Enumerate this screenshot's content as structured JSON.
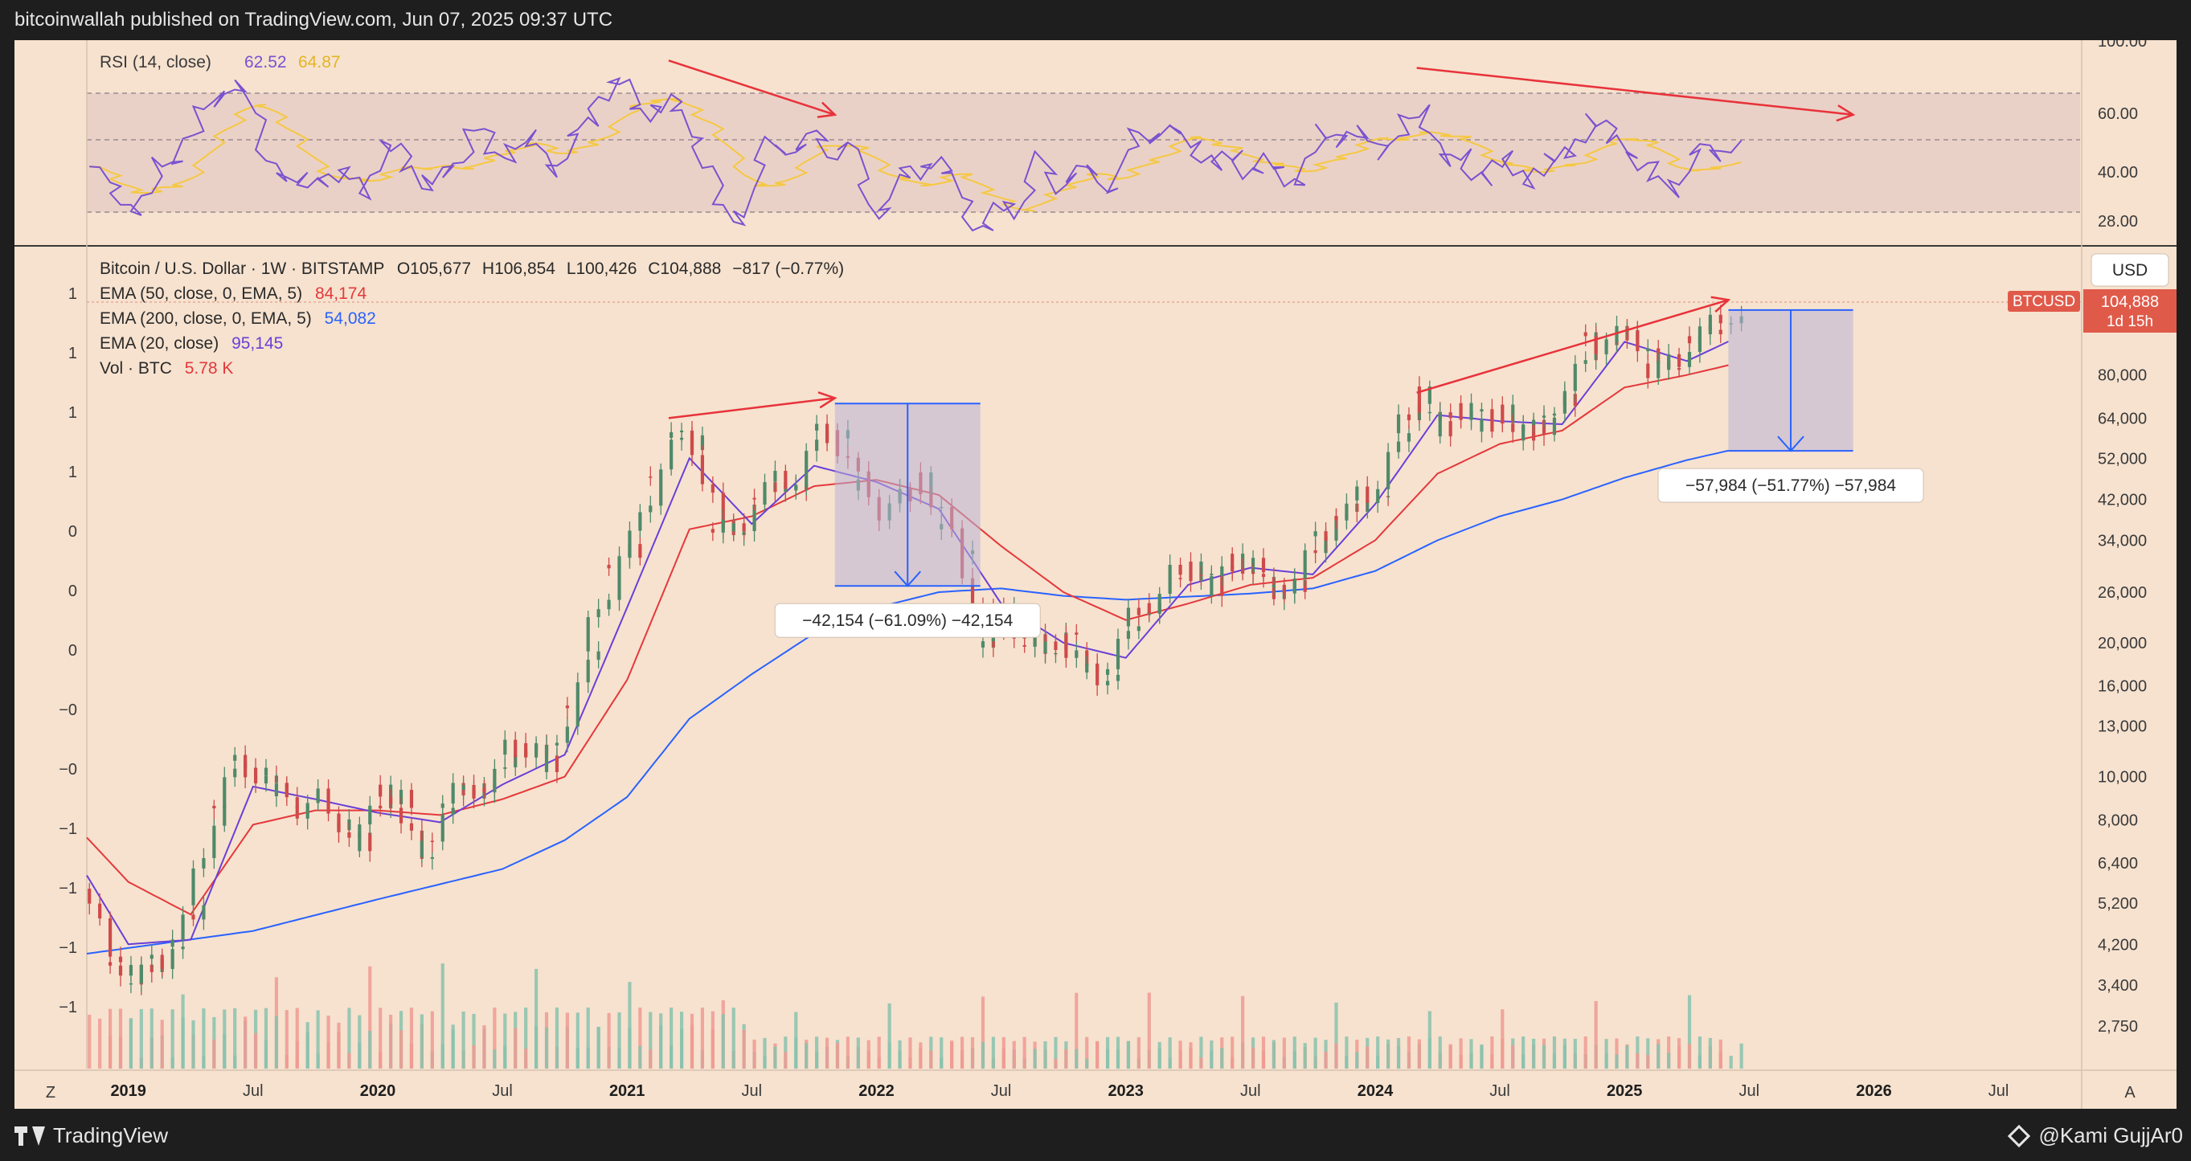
{
  "header": {
    "publisher_line": "bitcoinwallah published on TradingView.com, Jun 07, 2025 09:37 UTC"
  },
  "footer": {
    "brand": "TradingView",
    "credit": "@Kami GujjAr0"
  },
  "rsi_panel": {
    "legend_name": "RSI (14, close)",
    "value": "62.52",
    "ma_value": "64.87",
    "scale_labels": [
      "100.00",
      "60.00",
      "40.00",
      "28.00"
    ]
  },
  "price_panel": {
    "symbol_line": "Bitcoin / U.S. Dollar · 1W · BITSTAMP",
    "ohlc": {
      "O": "O105,677",
      "H": "H106,854",
      "L": "L100,426",
      "C": "C104,888",
      "chg": "−817 (−0.77%)"
    },
    "indicators": [
      {
        "label": "EMA (50, close, 0, EMA, 5)",
        "value": "84,174",
        "color": "#e5383b"
      },
      {
        "label": "EMA (200, close, 0, EMA, 5)",
        "value": "54,082",
        "color": "#2962ff"
      },
      {
        "label": "EMA (20, close)",
        "value": "95,145",
        "color": "#6a3fd8"
      },
      {
        "label": "Vol · BTC",
        "value": "5.78 K",
        "color": "#e5383b"
      }
    ],
    "currency": "USD",
    "price_tag": {
      "symbol": "BTCUSD",
      "price": "104,888",
      "countdown": "1d 15h"
    },
    "right_scale": [
      "80,000",
      "64,000",
      "52,000",
      "42,000",
      "34,000",
      "26,000",
      "20,000",
      "16,000",
      "13,000",
      "10,000",
      "8,000",
      "6,400",
      "5,200",
      "4,200",
      "3,400",
      "2,750"
    ],
    "left_scale": [
      "1",
      "1",
      "1",
      "1",
      "0",
      "0",
      "0",
      "−0",
      "−0",
      "−1",
      "−1",
      "−1",
      "−1"
    ],
    "time_labels": [
      "2019",
      "Jul",
      "2020",
      "Jul",
      "2021",
      "Jul",
      "2022",
      "Jul",
      "2023",
      "Jul",
      "2024",
      "Jul",
      "2025",
      "Jul",
      "2026",
      "Jul"
    ],
    "corner_left": "Z",
    "corner_right": "A",
    "measure_1": "−42,154 (−61.09%) −42,154",
    "measure_2": "−57,984 (−51.77%) −57,984"
  },
  "colors": {
    "background": "#f6e2cf",
    "up_candle": "#4f8a6a",
    "down_candle": "#cf4a4a",
    "ema50": "#e5383b",
    "ema200": "#2962ff",
    "ema20": "#6a3fd8",
    "rsi": "#7a52d0",
    "rsi_ma": "#f5c842",
    "divergence": "#e8323a",
    "measure": "#2962ff"
  },
  "chart_data": {
    "type": "line",
    "title": "Bitcoin / U.S. Dollar · 1W · BITSTAMP",
    "y_scale": "log",
    "ylim": [
      2500,
      130000
    ],
    "x_range": [
      "2018-11",
      "2026-11"
    ],
    "price_series": [
      {
        "t": "2018-11",
        "c": 5600
      },
      {
        "t": "2018-12",
        "c": 3800
      },
      {
        "t": "2019-01",
        "c": 3500
      },
      {
        "t": "2019-02",
        "c": 3800
      },
      {
        "t": "2019-03",
        "c": 4100
      },
      {
        "t": "2019-04",
        "c": 5300
      },
      {
        "t": "2019-05",
        "c": 8500
      },
      {
        "t": "2019-06",
        "c": 11000
      },
      {
        "t": "2019-07",
        "c": 10000
      },
      {
        "t": "2019-08",
        "c": 9600
      },
      {
        "t": "2019-09",
        "c": 8300
      },
      {
        "t": "2019-10",
        "c": 9200
      },
      {
        "t": "2019-11",
        "c": 7600
      },
      {
        "t": "2019-12",
        "c": 7200
      },
      {
        "t": "2020-01",
        "c": 9400
      },
      {
        "t": "2020-02",
        "c": 8600
      },
      {
        "t": "2020-03",
        "c": 6400
      },
      {
        "t": "2020-04",
        "c": 8700
      },
      {
        "t": "2020-05",
        "c": 9500
      },
      {
        "t": "2020-06",
        "c": 9200
      },
      {
        "t": "2020-07",
        "c": 11300
      },
      {
        "t": "2020-08",
        "c": 11700
      },
      {
        "t": "2020-09",
        "c": 10800
      },
      {
        "t": "2020-10",
        "c": 13700
      },
      {
        "t": "2020-11",
        "c": 19700
      },
      {
        "t": "2020-12",
        "c": 29000
      },
      {
        "t": "2021-01",
        "c": 33000
      },
      {
        "t": "2021-02",
        "c": 45000
      },
      {
        "t": "2021-03",
        "c": 58800
      },
      {
        "t": "2021-04",
        "c": 57700
      },
      {
        "t": "2021-05",
        "c": 37300
      },
      {
        "t": "2021-06",
        "c": 35000
      },
      {
        "t": "2021-07",
        "c": 41500
      },
      {
        "t": "2021-08",
        "c": 47100
      },
      {
        "t": "2021-09",
        "c": 43800
      },
      {
        "t": "2021-10",
        "c": 61300
      },
      {
        "t": "2021-11",
        "c": 57000
      },
      {
        "t": "2021-12",
        "c": 46300
      },
      {
        "t": "2022-01",
        "c": 38500
      },
      {
        "t": "2022-02",
        "c": 43200
      },
      {
        "t": "2022-03",
        "c": 45500
      },
      {
        "t": "2022-04",
        "c": 37700
      },
      {
        "t": "2022-05",
        "c": 31800
      },
      {
        "t": "2022-06",
        "c": 19900
      },
      {
        "t": "2022-07",
        "c": 23300
      },
      {
        "t": "2022-08",
        "c": 20000
      },
      {
        "t": "2022-09",
        "c": 19400
      },
      {
        "t": "2022-10",
        "c": 20500
      },
      {
        "t": "2022-11",
        "c": 17200
      },
      {
        "t": "2022-12",
        "c": 16500
      },
      {
        "t": "2023-01",
        "c": 23100
      },
      {
        "t": "2023-02",
        "c": 23500
      },
      {
        "t": "2023-03",
        "c": 28500
      },
      {
        "t": "2023-04",
        "c": 29200
      },
      {
        "t": "2023-05",
        "c": 27200
      },
      {
        "t": "2023-06",
        "c": 30500
      },
      {
        "t": "2023-07",
        "c": 29200
      },
      {
        "t": "2023-08",
        "c": 26000
      },
      {
        "t": "2023-09",
        "c": 27000
      },
      {
        "t": "2023-10",
        "c": 34500
      },
      {
        "t": "2023-11",
        "c": 37700
      },
      {
        "t": "2023-12",
        "c": 42300
      },
      {
        "t": "2024-01",
        "c": 42600
      },
      {
        "t": "2024-02",
        "c": 61200
      },
      {
        "t": "2024-03",
        "c": 71300
      },
      {
        "t": "2024-04",
        "c": 60600
      },
      {
        "t": "2024-05",
        "c": 67500
      },
      {
        "t": "2024-06",
        "c": 62700
      },
      {
        "t": "2024-07",
        "c": 64600
      },
      {
        "t": "2024-08",
        "c": 59000
      },
      {
        "t": "2024-09",
        "c": 63300
      },
      {
        "t": "2024-10",
        "c": 70200
      },
      {
        "t": "2024-11",
        "c": 96400
      },
      {
        "t": "2024-12",
        "c": 93400
      },
      {
        "t": "2025-01",
        "c": 102400
      },
      {
        "t": "2025-02",
        "c": 84300
      },
      {
        "t": "2025-03",
        "c": 82500
      },
      {
        "t": "2025-04",
        "c": 94200
      },
      {
        "t": "2025-05",
        "c": 104600
      },
      {
        "t": "2025-06",
        "c": 104888
      }
    ],
    "ema_points": {
      "ema20": [
        [
          "2018-11",
          6000
        ],
        [
          "2019-01",
          4200
        ],
        [
          "2019-04",
          4300
        ],
        [
          "2019-07",
          9500
        ],
        [
          "2019-10",
          8900
        ],
        [
          "2020-01",
          8300
        ],
        [
          "2020-04",
          7900
        ],
        [
          "2020-07",
          9600
        ],
        [
          "2020-10",
          11200
        ],
        [
          "2021-01",
          24000
        ],
        [
          "2021-04",
          52000
        ],
        [
          "2021-07",
          37000
        ],
        [
          "2021-10",
          50000
        ],
        [
          "2022-01",
          46000
        ],
        [
          "2022-04",
          40000
        ],
        [
          "2022-07",
          24500
        ],
        [
          "2022-10",
          20000
        ],
        [
          "2023-01",
          18500
        ],
        [
          "2023-04",
          27000
        ],
        [
          "2023-07",
          29500
        ],
        [
          "2023-10",
          28500
        ],
        [
          "2024-01",
          41000
        ],
        [
          "2024-04",
          65000
        ],
        [
          "2024-07",
          63000
        ],
        [
          "2024-10",
          62000
        ],
        [
          "2025-01",
          95000
        ],
        [
          "2025-04",
          86000
        ],
        [
          "2025-06",
          95145
        ]
      ],
      "ema50": [
        [
          "2018-11",
          7300
        ],
        [
          "2019-01",
          5800
        ],
        [
          "2019-04",
          4900
        ],
        [
          "2019-07",
          7800
        ],
        [
          "2019-10",
          8400
        ],
        [
          "2020-01",
          8400
        ],
        [
          "2020-04",
          8200
        ],
        [
          "2020-07",
          8900
        ],
        [
          "2020-10",
          10000
        ],
        [
          "2021-01",
          16500
        ],
        [
          "2021-04",
          36000
        ],
        [
          "2021-07",
          38500
        ],
        [
          "2021-10",
          45000
        ],
        [
          "2022-01",
          46500
        ],
        [
          "2022-04",
          43000
        ],
        [
          "2022-07",
          33000
        ],
        [
          "2022-10",
          26000
        ],
        [
          "2023-01",
          22500
        ],
        [
          "2023-04",
          24500
        ],
        [
          "2023-07",
          27000
        ],
        [
          "2023-10",
          28000
        ],
        [
          "2024-01",
          34000
        ],
        [
          "2024-04",
          48000
        ],
        [
          "2024-07",
          56000
        ],
        [
          "2024-10",
          60000
        ],
        [
          "2025-01",
          75000
        ],
        [
          "2025-04",
          80000
        ],
        [
          "2025-06",
          84174
        ]
      ],
      "ema200": [
        [
          "2018-11",
          4000
        ],
        [
          "2019-07",
          4500
        ],
        [
          "2020-01",
          5300
        ],
        [
          "2020-07",
          6200
        ],
        [
          "2020-10",
          7200
        ],
        [
          "2021-01",
          9000
        ],
        [
          "2021-04",
          13500
        ],
        [
          "2021-07",
          17000
        ],
        [
          "2021-10",
          21000
        ],
        [
          "2022-01",
          24000
        ],
        [
          "2022-04",
          26000
        ],
        [
          "2022-07",
          26500
        ],
        [
          "2022-10",
          25500
        ],
        [
          "2023-01",
          25000
        ],
        [
          "2023-07",
          25800
        ],
        [
          "2023-10",
          26500
        ],
        [
          "2024-01",
          29000
        ],
        [
          "2024-04",
          34000
        ],
        [
          "2024-07",
          38500
        ],
        [
          "2024-10",
          42000
        ],
        [
          "2025-01",
          47000
        ],
        [
          "2025-04",
          51500
        ],
        [
          "2025-06",
          54082
        ]
      ]
    },
    "rsi": {
      "value": 62.52,
      "ma": 64.87,
      "upper_band": 70,
      "mid": 50,
      "lower_band": 30
    },
    "measurements": [
      {
        "label": "−42,154 (−61.09%) −42,154",
        "from": [
          "2021-11",
          69000
        ],
        "to": [
          "2022-06",
          26850
        ]
      },
      {
        "label": "−57,984 (−51.77%) −57,984",
        "from": [
          "2025-06",
          112000
        ],
        "to": [
          "2025-12",
          54016
        ]
      }
    ],
    "divergences": [
      {
        "panel": "price",
        "from": [
          "2021-03",
          64000
        ],
        "to": [
          "2021-11",
          71000
        ]
      },
      {
        "panel": "rsi",
        "from": [
          "2021-03",
          95
        ],
        "to": [
          "2021-11",
          73
        ]
      },
      {
        "panel": "price",
        "from": [
          "2024-03",
          73000
        ],
        "to": [
          "2025-06",
          118000
        ]
      },
      {
        "panel": "rsi",
        "from": [
          "2024-03",
          92
        ],
        "to": [
          "2025-12",
          73
        ]
      }
    ]
  }
}
